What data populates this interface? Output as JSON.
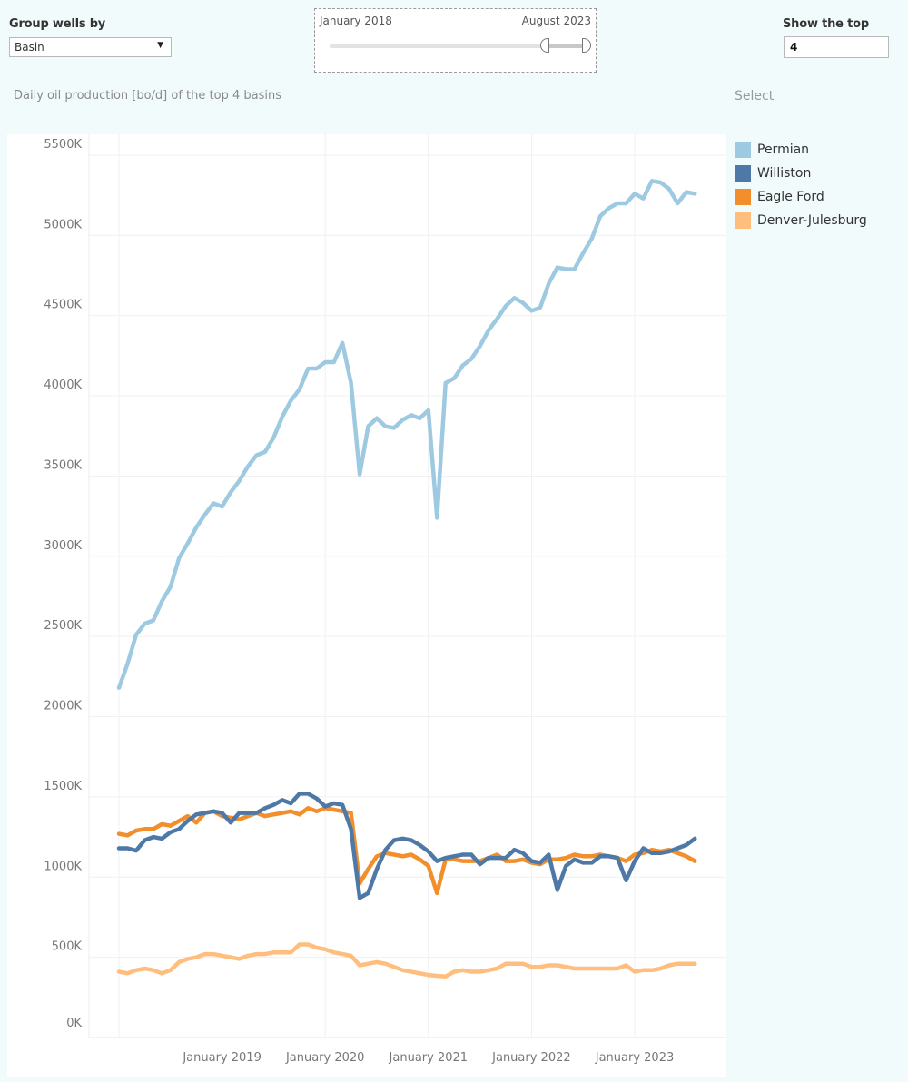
{
  "controls": {
    "group_by_label": "Group wells by",
    "group_by_value": "Basin",
    "group_by_caret": "▼",
    "date_range": {
      "start_label": "January 2018",
      "end_label": "August 2023"
    },
    "top_n_label": "Show the top",
    "top_n_value": "4"
  },
  "subtitle": "Daily oil production [bo/d] of the top 4 basins",
  "legend_title": "Select",
  "chart_data": {
    "type": "line",
    "title": "Daily oil production [bo/d] of the top 4 basins",
    "xlabel": "",
    "ylabel": "",
    "x_start": "2018-01",
    "x_end": "2023-08",
    "x_frequency": "monthly",
    "x_ticks": [
      "January 2019",
      "January 2020",
      "January 2021",
      "January 2022",
      "January 2023"
    ],
    "y_ticks": [
      "0K",
      "500K",
      "1000K",
      "1500K",
      "2000K",
      "2500K",
      "3000K",
      "3500K",
      "4000K",
      "4500K",
      "5000K",
      "5500K"
    ],
    "ylim": [
      0,
      5500
    ],
    "y_units": "thousand bo/d",
    "grid": true,
    "legend_position": "right",
    "series": [
      {
        "name": "Permian",
        "color": "#9ecae1",
        "values": [
          2180,
          2330,
          2510,
          2580,
          2600,
          2720,
          2810,
          2990,
          3080,
          3180,
          3260,
          3330,
          3310,
          3400,
          3470,
          3560,
          3630,
          3650,
          3740,
          3870,
          3970,
          4040,
          4170,
          4170,
          4210,
          4210,
          4330,
          4080,
          3510,
          3810,
          3860,
          3810,
          3800,
          3850,
          3880,
          3860,
          3910,
          3240,
          4080,
          4110,
          4190,
          4230,
          4310,
          4410,
          4480,
          4560,
          4610,
          4580,
          4530,
          4550,
          4700,
          4800,
          4790,
          4790,
          4890,
          4980,
          5120,
          5170,
          5200,
          5200,
          5260,
          5230,
          5340,
          5330,
          5290,
          5200,
          5270,
          5260
        ]
      },
      {
        "name": "Williston",
        "color": "#4e79a7",
        "values": [
          1180,
          1180,
          1165,
          1230,
          1250,
          1240,
          1280,
          1300,
          1350,
          1390,
          1400,
          1410,
          1400,
          1340,
          1400,
          1400,
          1400,
          1430,
          1450,
          1480,
          1460,
          1520,
          1520,
          1490,
          1440,
          1460,
          1450,
          1300,
          870,
          900,
          1050,
          1170,
          1230,
          1240,
          1230,
          1200,
          1160,
          1100,
          1120,
          1130,
          1140,
          1140,
          1080,
          1120,
          1120,
          1120,
          1170,
          1150,
          1100,
          1090,
          1140,
          920,
          1070,
          1110,
          1090,
          1090,
          1130,
          1130,
          1120,
          980,
          1100,
          1180,
          1150,
          1150,
          1160,
          1180,
          1200,
          1240
        ]
      },
      {
        "name": "Eagle Ford",
        "color": "#f28e2b",
        "values": [
          1270,
          1260,
          1290,
          1300,
          1300,
          1330,
          1320,
          1350,
          1380,
          1340,
          1400,
          1410,
          1380,
          1370,
          1360,
          1380,
          1400,
          1380,
          1390,
          1400,
          1410,
          1390,
          1430,
          1410,
          1430,
          1420,
          1410,
          1400,
          960,
          1050,
          1130,
          1150,
          1140,
          1130,
          1140,
          1110,
          1070,
          900,
          1110,
          1110,
          1100,
          1100,
          1100,
          1120,
          1140,
          1100,
          1100,
          1110,
          1090,
          1080,
          1110,
          1110,
          1120,
          1140,
          1130,
          1130,
          1140,
          1130,
          1120,
          1100,
          1140,
          1150,
          1170,
          1160,
          1170,
          1150,
          1130,
          1100
        ]
      },
      {
        "name": "Denver-Julesburg",
        "color": "#ffbe7d",
        "values": [
          410,
          400,
          420,
          430,
          420,
          400,
          420,
          470,
          490,
          500,
          520,
          520,
          510,
          500,
          490,
          510,
          520,
          520,
          530,
          530,
          530,
          580,
          580,
          560,
          550,
          530,
          520,
          510,
          450,
          460,
          470,
          460,
          440,
          420,
          410,
          400,
          390,
          385,
          380,
          410,
          420,
          410,
          410,
          420,
          430,
          460,
          460,
          460,
          440,
          440,
          450,
          450,
          440,
          430,
          430,
          430,
          430,
          430,
          430,
          450,
          410,
          420,
          420,
          430,
          450,
          460,
          460,
          460
        ]
      }
    ]
  }
}
